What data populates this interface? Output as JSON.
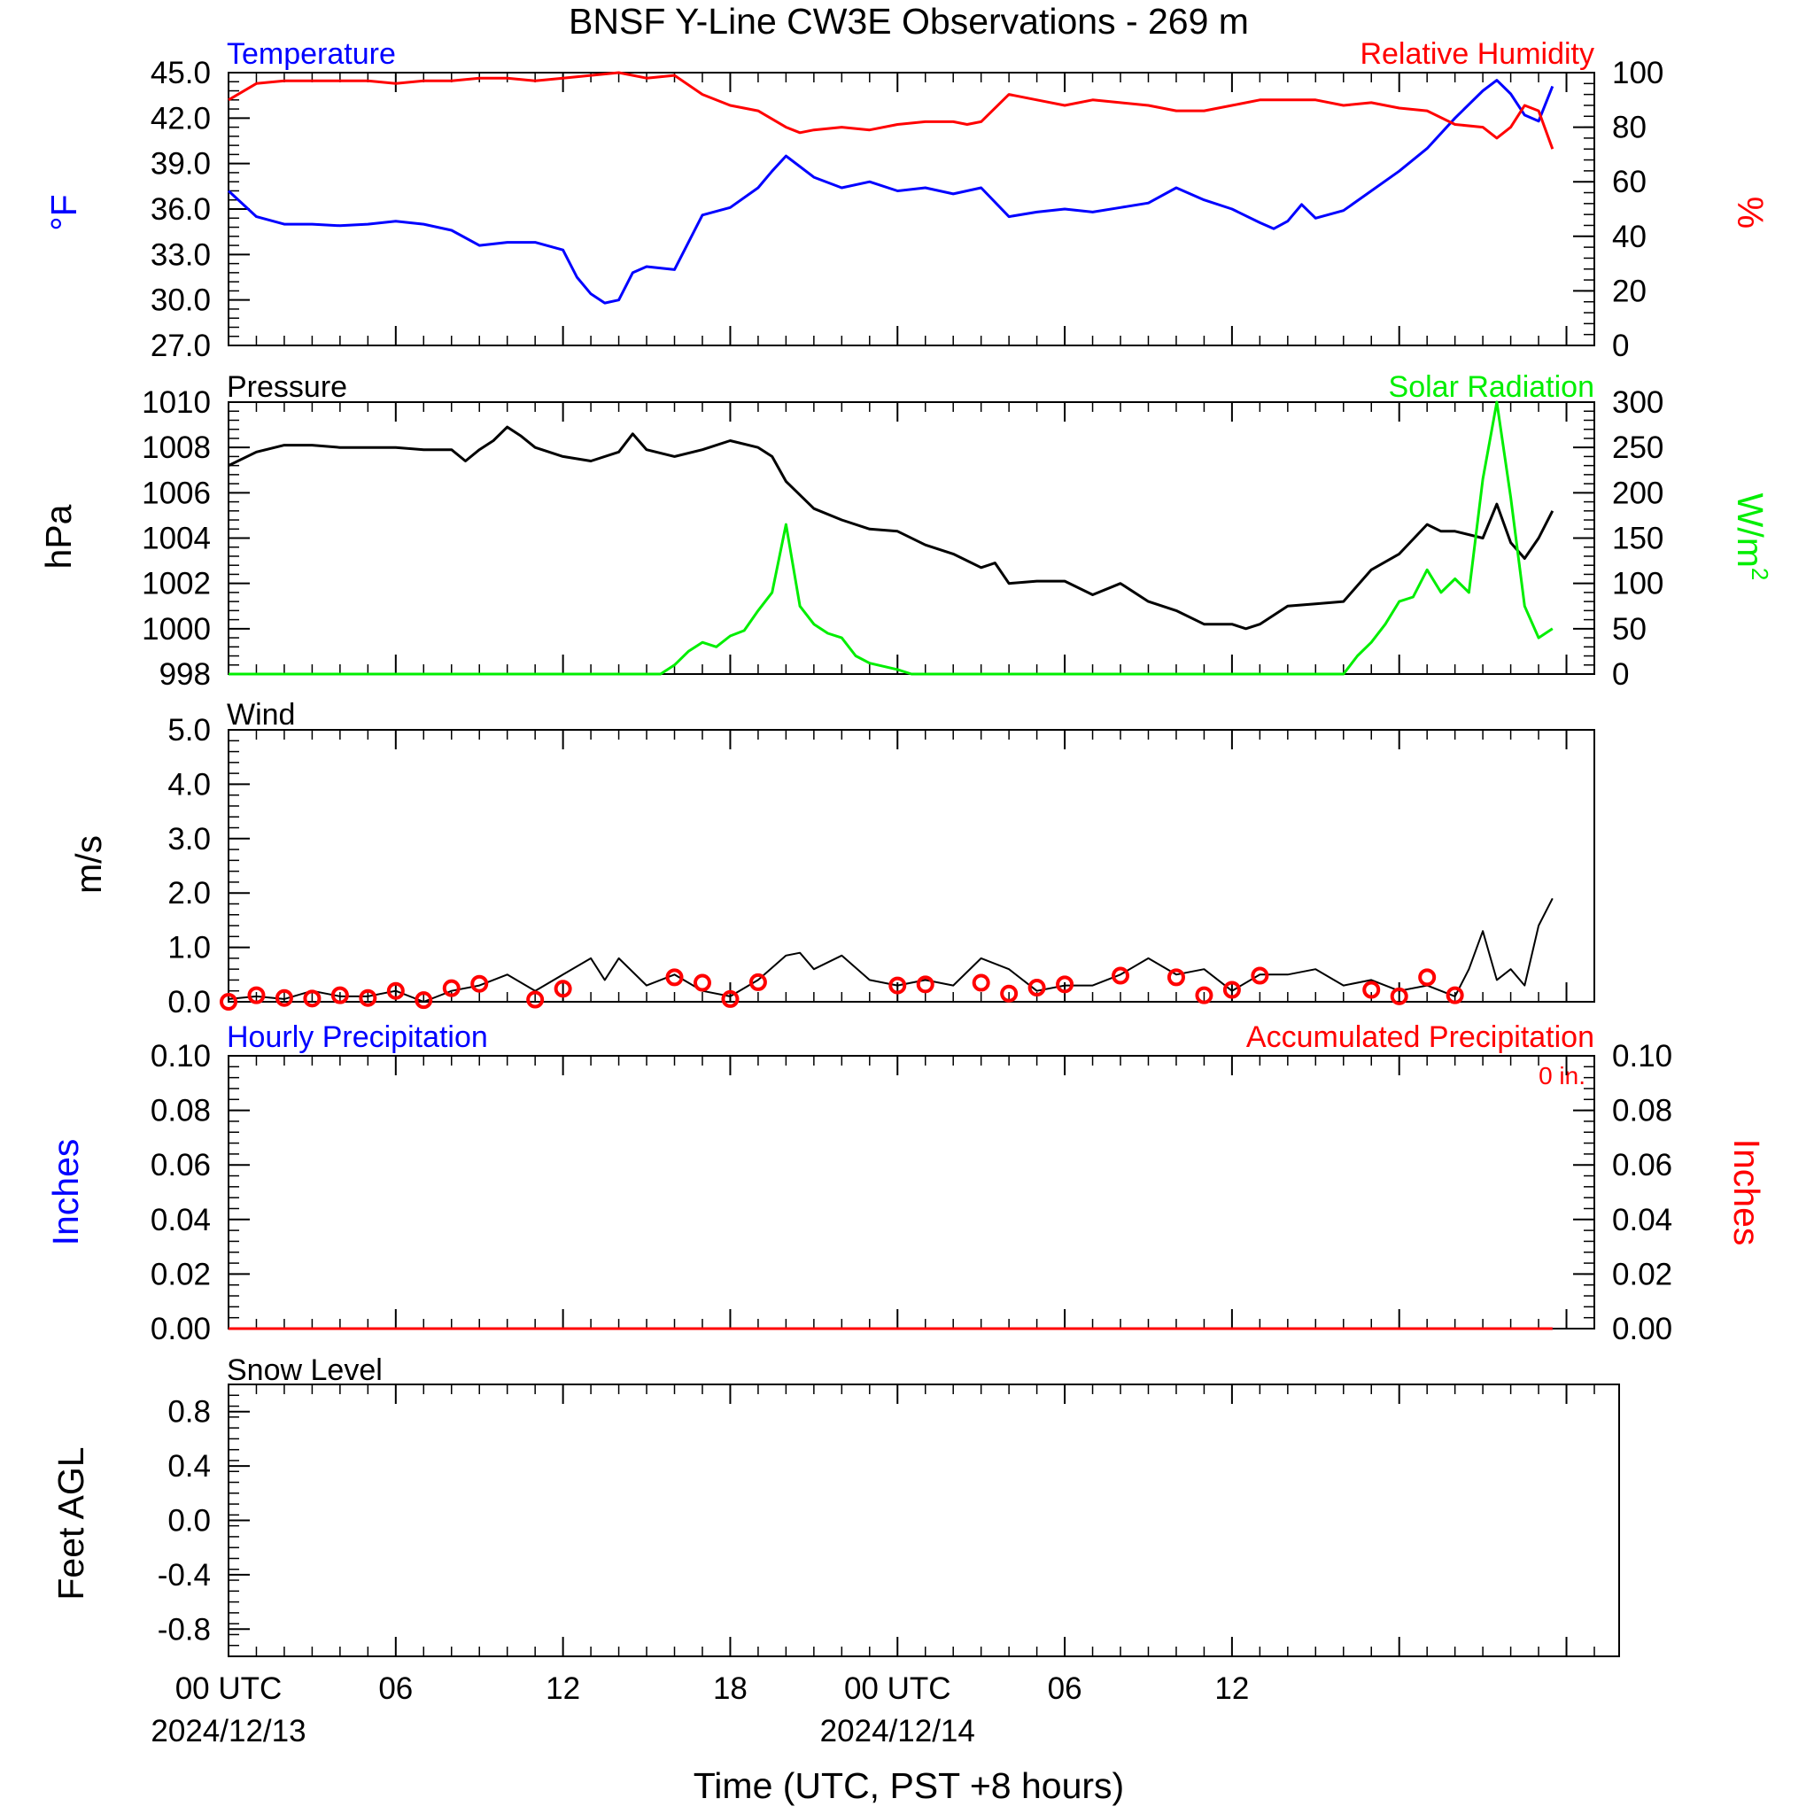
{
  "figure": {
    "title": "BNSF Y-Line CW3E Observations - 269 m",
    "xlabel": "Time (UTC, PST +8 hours)",
    "x_range_hours": [
      0,
      49
    ],
    "x_ticks": [
      {
        "hour": 0,
        "label": "00 UTC",
        "date": "2024/12/13"
      },
      {
        "hour": 6,
        "label": "06",
        "date": ""
      },
      {
        "hour": 12,
        "label": "12",
        "date": ""
      },
      {
        "hour": 18,
        "label": "18",
        "date": ""
      },
      {
        "hour": 24,
        "label": "00 UTC",
        "date": "2024/12/14"
      },
      {
        "hour": 30,
        "label": "06",
        "date": ""
      },
      {
        "hour": 36,
        "label": "12",
        "date": ""
      },
      {
        "hour": 42,
        "label": "",
        "date": ""
      },
      {
        "hour": 48,
        "label": "",
        "date": ""
      }
    ]
  },
  "chart_data": [
    {
      "type": "line",
      "panel": "temperature-humidity",
      "x_unit": "hours since 2024/12/13 00 UTC",
      "left_axis": {
        "label": "°F",
        "color": "#0000ff",
        "ylim": [
          27,
          45
        ],
        "ticks": [
          27,
          30,
          33,
          36,
          39,
          42,
          45
        ],
        "tick_labels": [
          "27.0",
          "30.0",
          "33.0",
          "36.0",
          "39.0",
          "42.0",
          "45.0"
        ]
      },
      "right_axis": {
        "label": "%",
        "color": "#ff0000",
        "ylim": [
          0,
          100
        ],
        "ticks": [
          0,
          20,
          40,
          60,
          80,
          100
        ],
        "tick_labels": [
          "0",
          "20",
          "40",
          "60",
          "80",
          "100"
        ]
      },
      "series": [
        {
          "name": "Temperature",
          "axis": "left",
          "color": "#0000ff",
          "x": [
            0,
            1,
            2,
            3,
            4,
            5,
            6,
            7,
            8,
            9,
            10,
            11,
            12,
            12.5,
            13,
            13.5,
            14,
            14.5,
            15,
            16,
            17,
            18,
            19,
            19.5,
            20,
            21,
            22,
            23,
            24,
            25,
            26,
            27,
            28,
            29,
            30,
            31,
            32,
            33,
            34,
            35,
            36,
            37,
            37.5,
            38,
            38.5,
            39,
            40,
            41,
            42,
            43,
            44,
            45,
            45.5,
            46,
            46.5,
            47,
            47.5
          ],
          "values": [
            37.2,
            35.5,
            35.0,
            35.0,
            34.9,
            35.0,
            35.2,
            35.0,
            34.6,
            33.6,
            33.8,
            33.8,
            33.3,
            31.5,
            30.4,
            29.8,
            30.0,
            31.8,
            32.2,
            32.0,
            35.6,
            36.1,
            37.4,
            38.5,
            39.5,
            38.1,
            37.4,
            37.8,
            37.2,
            37.4,
            37.0,
            37.4,
            35.5,
            35.8,
            36.0,
            35.8,
            36.1,
            36.4,
            37.4,
            36.6,
            36.0,
            35.1,
            34.7,
            35.2,
            36.3,
            35.4,
            35.9,
            37.2,
            38.5,
            40.0,
            42.0,
            43.8,
            44.5,
            43.6,
            42.2,
            41.8,
            44.1
          ]
        },
        {
          "name": "Relative Humidity",
          "axis": "right",
          "color": "#ff0000",
          "x": [
            0,
            1,
            2,
            3,
            4,
            5,
            6,
            7,
            8,
            9,
            10,
            11,
            12,
            13,
            14,
            15,
            16,
            17,
            18,
            19,
            20,
            20.5,
            21,
            22,
            23,
            24,
            25,
            26,
            26.5,
            27,
            28,
            29,
            30,
            31,
            32,
            33,
            34,
            35,
            36,
            37,
            38,
            39,
            40,
            41,
            42,
            43,
            44,
            45,
            45.5,
            46,
            46.5,
            47,
            47.5
          ],
          "values": [
            90,
            96,
            97,
            97,
            97,
            97,
            96,
            97,
            97,
            98,
            98,
            97,
            98,
            99,
            100,
            98,
            99,
            92,
            88,
            86,
            80,
            78,
            79,
            80,
            79,
            81,
            82,
            82,
            81,
            82,
            92,
            90,
            88,
            90,
            89,
            88,
            86,
            86,
            88,
            90,
            90,
            90,
            88,
            89,
            87,
            86,
            81,
            80,
            76,
            80,
            88,
            86,
            72
          ]
        }
      ]
    },
    {
      "type": "line",
      "panel": "pressure-solar",
      "x_unit": "hours since 2024/12/13 00 UTC",
      "left_axis": {
        "label": "hPa",
        "color": "#000000",
        "ylim": [
          998,
          1010
        ],
        "ticks": [
          998,
          1000,
          1002,
          1004,
          1006,
          1008,
          1010
        ],
        "tick_labels": [
          "998",
          "1000",
          "1002",
          "1004",
          "1006",
          "1008",
          "1010"
        ]
      },
      "right_axis": {
        "label": "W/m",
        "label_sup": "2",
        "color": "#00ee00",
        "ylim": [
          0,
          300
        ],
        "ticks": [
          0,
          50,
          100,
          150,
          200,
          250,
          300
        ],
        "tick_labels": [
          "0",
          "50",
          "100",
          "150",
          "200",
          "250",
          "300"
        ]
      },
      "series": [
        {
          "name": "Pressure",
          "axis": "left",
          "color": "#000000",
          "x": [
            0,
            1,
            2,
            3,
            4,
            5,
            6,
            7,
            8,
            8.5,
            9,
            9.5,
            10,
            10.5,
            11,
            12,
            13,
            14,
            14.5,
            15,
            16,
            17,
            18,
            19,
            19.5,
            20,
            21,
            22,
            23,
            24,
            25,
            26,
            27,
            27.5,
            28,
            29,
            30,
            31,
            32,
            33,
            34,
            35,
            36,
            36.5,
            37,
            38,
            39,
            40,
            41,
            42,
            43,
            43.5,
            44,
            45,
            45.5,
            46,
            46.5,
            47,
            47.5
          ],
          "values": [
            1007.2,
            1007.8,
            1008.1,
            1008.1,
            1008.0,
            1008.0,
            1008.0,
            1007.9,
            1007.9,
            1007.4,
            1007.9,
            1008.3,
            1008.9,
            1008.5,
            1008.0,
            1007.6,
            1007.4,
            1007.8,
            1008.6,
            1007.9,
            1007.6,
            1007.9,
            1008.3,
            1008.0,
            1007.6,
            1006.5,
            1005.3,
            1004.8,
            1004.4,
            1004.3,
            1003.7,
            1003.3,
            1002.7,
            1002.9,
            1002.0,
            1002.1,
            1002.1,
            1001.5,
            1002.0,
            1001.2,
            1000.8,
            1000.2,
            1000.2,
            1000.0,
            1000.2,
            1001.0,
            1001.1,
            1001.2,
            1002.6,
            1003.3,
            1004.6,
            1004.3,
            1004.3,
            1004.0,
            1005.5,
            1003.8,
            1003.1,
            1004.0,
            1005.2
          ]
        },
        {
          "name": "Solar Radiation",
          "axis": "right",
          "color": "#00ee00",
          "x": [
            0,
            15.5,
            16,
            16.5,
            17,
            17.5,
            18,
            18.5,
            19,
            19.5,
            20,
            20.5,
            21,
            21.5,
            22,
            22.5,
            23,
            24,
            24.5,
            40,
            40.5,
            41,
            41.5,
            42,
            42.5,
            43,
            43.5,
            44,
            44.5,
            45,
            45.5,
            46,
            46.5,
            47,
            47.5
          ],
          "values": [
            0,
            0,
            10,
            25,
            35,
            30,
            42,
            48,
            70,
            90,
            165,
            75,
            55,
            45,
            40,
            20,
            12,
            5,
            0,
            0,
            20,
            35,
            55,
            80,
            85,
            115,
            90,
            105,
            90,
            215,
            300,
            195,
            75,
            40,
            50
          ]
        }
      ]
    },
    {
      "type": "line",
      "panel": "wind",
      "title": "Wind",
      "x_unit": "hours since 2024/12/13 00 UTC",
      "left_axis": {
        "label": "m/s",
        "color": "#000000",
        "ylim": [
          0,
          5
        ],
        "ticks": [
          0,
          1,
          2,
          3,
          4,
          5
        ],
        "tick_labels": [
          "0.0",
          "1.0",
          "2.0",
          "3.0",
          "4.0",
          "5.0"
        ]
      },
      "series": [
        {
          "name": "Wind",
          "axis": "left",
          "color": "#000000",
          "x": [
            0,
            1,
            2,
            3,
            4,
            5,
            6,
            7,
            8,
            9,
            10,
            11,
            12,
            13,
            13.5,
            14,
            15,
            16,
            17,
            18,
            19,
            20,
            20.5,
            21,
            22,
            23,
            24,
            25,
            26,
            27,
            28,
            29,
            30,
            31,
            32,
            33,
            34,
            35,
            36,
            37,
            38,
            39,
            40,
            41,
            42,
            43,
            44,
            44.5,
            45,
            45.5,
            46,
            46.5,
            47,
            47.5
          ],
          "values": [
            0.05,
            0.1,
            0.05,
            0.2,
            0.1,
            0.1,
            0.2,
            0.0,
            0.2,
            0.3,
            0.5,
            0.2,
            0.5,
            0.8,
            0.4,
            0.8,
            0.3,
            0.5,
            0.2,
            0.1,
            0.4,
            0.85,
            0.9,
            0.6,
            0.85,
            0.4,
            0.3,
            0.4,
            0.3,
            0.8,
            0.6,
            0.2,
            0.3,
            0.3,
            0.5,
            0.8,
            0.5,
            0.6,
            0.2,
            0.5,
            0.5,
            0.6,
            0.3,
            0.4,
            0.2,
            0.3,
            0.1,
            0.6,
            1.3,
            0.4,
            0.6,
            0.3,
            1.4,
            1.9
          ]
        }
      ],
      "markers": {
        "symbol": "open-circle",
        "color": "#ff0000",
        "x": [
          0,
          1,
          2,
          3,
          4,
          5,
          6,
          7,
          8,
          9,
          11,
          12,
          16,
          17,
          18,
          19,
          24,
          25,
          27,
          28,
          29,
          30,
          32,
          34,
          35,
          36,
          37,
          41,
          42,
          43,
          44
        ],
        "values": [
          0.0,
          0.12,
          0.07,
          0.06,
          0.12,
          0.07,
          0.2,
          0.03,
          0.25,
          0.33,
          0.04,
          0.24,
          0.45,
          0.35,
          0.05,
          0.36,
          0.3,
          0.32,
          0.35,
          0.15,
          0.26,
          0.32,
          0.48,
          0.45,
          0.12,
          0.22,
          0.48,
          0.22,
          0.1,
          0.45,
          0.12
        ]
      }
    },
    {
      "type": "line",
      "panel": "precipitation",
      "x_unit": "hours since 2024/12/13 00 UTC",
      "annotation": "0 in.",
      "left_axis": {
        "label": "Inches",
        "color": "#0000ff",
        "ylim": [
          0,
          0.1
        ],
        "ticks": [
          0,
          0.02,
          0.04,
          0.06,
          0.08,
          0.1
        ],
        "tick_labels": [
          "0.00",
          "0.02",
          "0.04",
          "0.06",
          "0.08",
          "0.10"
        ]
      },
      "right_axis": {
        "label": "Inches",
        "color": "#ff0000",
        "ylim": [
          0,
          0.1
        ],
        "ticks": [
          0,
          0.02,
          0.04,
          0.06,
          0.08,
          0.1
        ],
        "tick_labels": [
          "0.00",
          "0.02",
          "0.04",
          "0.06",
          "0.08",
          "0.10"
        ]
      },
      "series": [
        {
          "name": "Hourly Precipitation",
          "axis": "left",
          "color": "#0000ff",
          "x": [
            0,
            47.5
          ],
          "values": [
            0,
            0
          ]
        },
        {
          "name": "Accumulated Precipitation",
          "axis": "right",
          "color": "#ff0000",
          "x": [
            0,
            47.5
          ],
          "values": [
            0,
            0
          ]
        }
      ]
    },
    {
      "type": "line",
      "panel": "snow-level",
      "title": "Snow Level",
      "x_unit": "hours since 2024/12/13 00 UTC",
      "left_axis": {
        "label": "Feet AGL",
        "color": "#000000",
        "ylim": [
          -1,
          1
        ],
        "ticks": [
          -0.8,
          -0.4,
          0.0,
          0.4,
          0.8
        ],
        "tick_labels": [
          "-0.8",
          "-0.4",
          "0.0",
          "0.4",
          "0.8"
        ]
      },
      "series": []
    }
  ]
}
